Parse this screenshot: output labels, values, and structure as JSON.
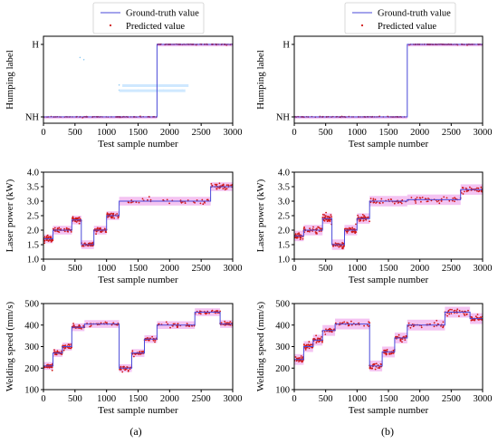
{
  "colors": {
    "truth": "#4a4ad8",
    "pred": "#d01818",
    "band": "#f2b8f0",
    "band_light": "#cfe8ff"
  },
  "legend": {
    "truth_label": "Ground-truth value",
    "pred_label": "Predicted value"
  },
  "panel_labels": [
    "(a)",
    "(b)"
  ],
  "chart_data": [
    {
      "type": "line",
      "panel": "(a)",
      "row": 0,
      "xlabel": "Test sample number",
      "ylabel": "Humping label",
      "xlim": [
        0,
        3000
      ],
      "ylim": [
        0,
        1
      ],
      "xticks": [
        0,
        500,
        1000,
        1500,
        2000,
        2500,
        3000
      ],
      "yticks": [
        {
          "v": 0.0,
          "label": "NH"
        },
        {
          "v": 1.0,
          "label": "H"
        }
      ],
      "segments": [
        [
          0,
          1800,
          0
        ],
        [
          1800,
          3000,
          1
        ]
      ],
      "noise": 0.003,
      "jitter": 0.012,
      "band": 0.01,
      "points_per_seg": 90,
      "outliers": [
        [
          580,
          0.82
        ],
        [
          640,
          0.79
        ],
        [
          1200,
          0.44
        ],
        [
          1400,
          0.44
        ],
        [
          1600,
          0.44
        ],
        [
          1800,
          0.44
        ],
        [
          2000,
          0.44
        ],
        [
          2200,
          0.44
        ],
        [
          1200,
          0.37
        ],
        [
          1500,
          0.37
        ],
        [
          1900,
          0.37
        ],
        [
          2200,
          0.37
        ]
      ],
      "legend": true
    },
    {
      "type": "line",
      "panel": "(b)",
      "row": 0,
      "xlabel": "Test sample number",
      "ylabel": "Humping label",
      "xlim": [
        0,
        3000
      ],
      "ylim": [
        0,
        1
      ],
      "xticks": [
        0,
        500,
        1000,
        1500,
        2000,
        2500,
        3000
      ],
      "yticks": [
        {
          "v": 0.0,
          "label": "NH"
        },
        {
          "v": 1.0,
          "label": "H"
        }
      ],
      "segments": [
        [
          0,
          1800,
          0
        ],
        [
          1800,
          3000,
          1
        ]
      ],
      "noise": 0.003,
      "jitter": 0.012,
      "band": 0.01,
      "points_per_seg": 90,
      "outliers": [],
      "legend": true
    },
    {
      "type": "line",
      "panel": "(a)",
      "row": 1,
      "xlabel": "Test sample number",
      "ylabel": "Laser power (kW)",
      "xlim": [
        0,
        3000
      ],
      "ylim": [
        1.0,
        4.0
      ],
      "xticks": [
        0,
        500,
        1000,
        1500,
        2000,
        2500,
        3000
      ],
      "yticks": [
        {
          "v": 1.0,
          "label": "1.0"
        },
        {
          "v": 1.5,
          "label": "1.5"
        },
        {
          "v": 2.0,
          "label": "2.0"
        },
        {
          "v": 2.5,
          "label": "2.5"
        },
        {
          "v": 3.0,
          "label": "3.0"
        },
        {
          "v": 3.5,
          "label": "3.5"
        },
        {
          "v": 4.0,
          "label": "4.0"
        }
      ],
      "segments": [
        [
          0,
          150,
          1.7
        ],
        [
          150,
          450,
          2.0
        ],
        [
          450,
          600,
          2.35
        ],
        [
          600,
          800,
          1.5
        ],
        [
          800,
          1000,
          2.0
        ],
        [
          1000,
          1200,
          2.5
        ],
        [
          1200,
          2650,
          3.0
        ],
        [
          2650,
          3000,
          3.5
        ]
      ],
      "noise": 0.12,
      "jitter": 0.25,
      "band": 0.15,
      "points_per_seg": 40,
      "outliers": [],
      "legend": false
    },
    {
      "type": "line",
      "panel": "(b)",
      "row": 1,
      "xlabel": "Test sample number",
      "ylabel": "Laser power (kW)",
      "xlim": [
        0,
        3000
      ],
      "ylim": [
        1.0,
        4.0
      ],
      "xticks": [
        0,
        500,
        1000,
        1500,
        2000,
        2500,
        3000
      ],
      "yticks": [
        {
          "v": 1.0,
          "label": "1.0"
        },
        {
          "v": 1.5,
          "label": "1.5"
        },
        {
          "v": 2.0,
          "label": "2.0"
        },
        {
          "v": 2.5,
          "label": "2.5"
        },
        {
          "v": 3.0,
          "label": "3.0"
        },
        {
          "v": 3.5,
          "label": "3.5"
        },
        {
          "v": 4.0,
          "label": "4.0"
        }
      ],
      "segments": [
        [
          0,
          150,
          1.8
        ],
        [
          150,
          450,
          2.0
        ],
        [
          450,
          600,
          2.4
        ],
        [
          600,
          800,
          1.5
        ],
        [
          800,
          1000,
          2.0
        ],
        [
          1000,
          1200,
          2.4
        ],
        [
          1200,
          1800,
          3.0
        ],
        [
          1800,
          2650,
          3.05
        ],
        [
          2650,
          3000,
          3.4
        ]
      ],
      "noise": 0.15,
      "jitter": 0.3,
      "band": 0.18,
      "points_per_seg": 40,
      "outliers": [],
      "legend": false
    },
    {
      "type": "line",
      "panel": "(a)",
      "row": 2,
      "xlabel": "Test sample number",
      "ylabel": "Welding speed (mm/s)",
      "xlim": [
        0,
        3000
      ],
      "ylim": [
        100,
        500
      ],
      "xticks": [
        0,
        500,
        1000,
        1500,
        2000,
        2500,
        3000
      ],
      "yticks": [
        {
          "v": 100,
          "label": "100"
        },
        {
          "v": 200,
          "label": "200"
        },
        {
          "v": 300,
          "label": "300"
        },
        {
          "v": 400,
          "label": "400"
        },
        {
          "v": 500,
          "label": "500"
        }
      ],
      "segments": [
        [
          0,
          150,
          210
        ],
        [
          150,
          300,
          270
        ],
        [
          300,
          450,
          300
        ],
        [
          450,
          650,
          390
        ],
        [
          650,
          1200,
          405
        ],
        [
          1200,
          1400,
          200
        ],
        [
          1400,
          1600,
          270
        ],
        [
          1600,
          1800,
          335
        ],
        [
          1800,
          2400,
          400
        ],
        [
          2400,
          2800,
          460
        ],
        [
          2800,
          3000,
          405
        ]
      ],
      "noise": 12,
      "jitter": 28,
      "band": 18,
      "points_per_seg": 32,
      "outliers": [],
      "legend": false
    },
    {
      "type": "line",
      "panel": "(b)",
      "row": 2,
      "xlabel": "Test sample number",
      "ylabel": "Welding speed (mm/s)",
      "xlim": [
        0,
        3000
      ],
      "ylim": [
        100,
        500
      ],
      "xticks": [
        0,
        500,
        1000,
        1500,
        2000,
        2500,
        3000
      ],
      "yticks": [
        {
          "v": 100,
          "label": "100"
        },
        {
          "v": 200,
          "label": "200"
        },
        {
          "v": 300,
          "label": "300"
        },
        {
          "v": 400,
          "label": "400"
        },
        {
          "v": 500,
          "label": "500"
        }
      ],
      "segments": [
        [
          0,
          150,
          240
        ],
        [
          150,
          300,
          300
        ],
        [
          300,
          450,
          330
        ],
        [
          450,
          650,
          375
        ],
        [
          650,
          1200,
          405
        ],
        [
          1200,
          1400,
          210
        ],
        [
          1400,
          1600,
          275
        ],
        [
          1600,
          1800,
          340
        ],
        [
          1800,
          2400,
          400
        ],
        [
          2400,
          2800,
          460
        ],
        [
          2800,
          3000,
          430
        ]
      ],
      "noise": 18,
      "jitter": 40,
      "band": 25,
      "points_per_seg": 32,
      "outliers": [],
      "legend": false
    }
  ]
}
